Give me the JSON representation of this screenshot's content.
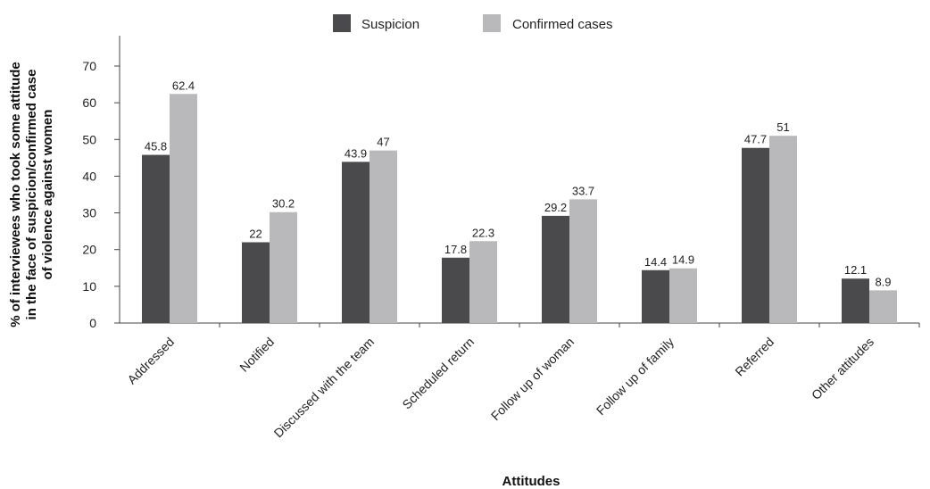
{
  "chart_data": {
    "type": "bar",
    "categories": [
      "Addressed",
      "Notified",
      "Discussed with the team",
      "Scheduled return",
      "Follow up of woman",
      "Follow up of family",
      "Referred",
      "Other attitudes"
    ],
    "series": [
      {
        "name": "Suspicion",
        "color": "#4a4a4c",
        "values": [
          45.8,
          22,
          43.9,
          17.8,
          29.2,
          14.4,
          47.7,
          12.1
        ],
        "labels": [
          "45.8",
          "22",
          "43.9",
          "17.8",
          "29.2",
          "14.4",
          "47.7",
          "12.1"
        ]
      },
      {
        "name": "Confirmed cases",
        "color": "#b9b9bc",
        "values": [
          62.4,
          30.2,
          47,
          22.3,
          33.7,
          14.9,
          51,
          8.9
        ],
        "labels": [
          "62.4",
          "30.2",
          "47",
          "22.3",
          "33.7",
          "14.9",
          "51",
          "8.9"
        ]
      }
    ],
    "xlabel": "Attitudes",
    "ylabel_lines": [
      "% of interviewees who took some attitude",
      "in the face of suspicion/confirmed case",
      "of violence against women"
    ],
    "ylim": [
      0,
      70
    ],
    "yticks": [
      0,
      10,
      20,
      30,
      40,
      50,
      60,
      70
    ],
    "grid": false,
    "legend_position": "top-center"
  }
}
